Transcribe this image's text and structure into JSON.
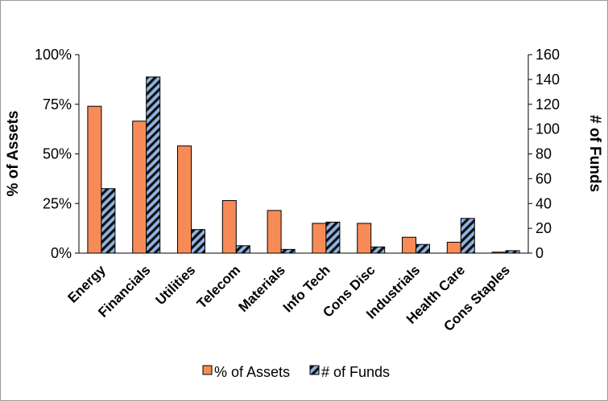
{
  "chart_data": {
    "type": "bar",
    "categories": [
      "Energy",
      "Financials",
      "Utilities",
      "Telecom",
      "Materials",
      "Info Tech",
      "Cons Disc",
      "Industrials",
      "Health Care",
      "Cons Staples"
    ],
    "series": [
      {
        "name": "% of Assets",
        "axis": "left",
        "color": "#f68b57",
        "values": [
          74,
          66.5,
          54,
          26.5,
          21.5,
          15,
          15,
          8,
          5.5,
          0.5
        ]
      },
      {
        "name": "# of Funds",
        "axis": "right",
        "color": "#8fb4e3",
        "pattern": "diagonal-stripes",
        "values": [
          52,
          142,
          19,
          6,
          3,
          25,
          5,
          7,
          28,
          2
        ]
      }
    ],
    "ylabel": "% of Assets",
    "y2label": "# of Funds",
    "ylim": [
      0,
      100
    ],
    "y2lim": [
      0,
      160
    ],
    "yticks": [
      "0%",
      "25%",
      "50%",
      "75%",
      "100%"
    ],
    "y2ticks": [
      "0",
      "20",
      "40",
      "60",
      "80",
      "100",
      "120",
      "140",
      "160"
    ],
    "legend_position": "bottom",
    "grid": false
  }
}
